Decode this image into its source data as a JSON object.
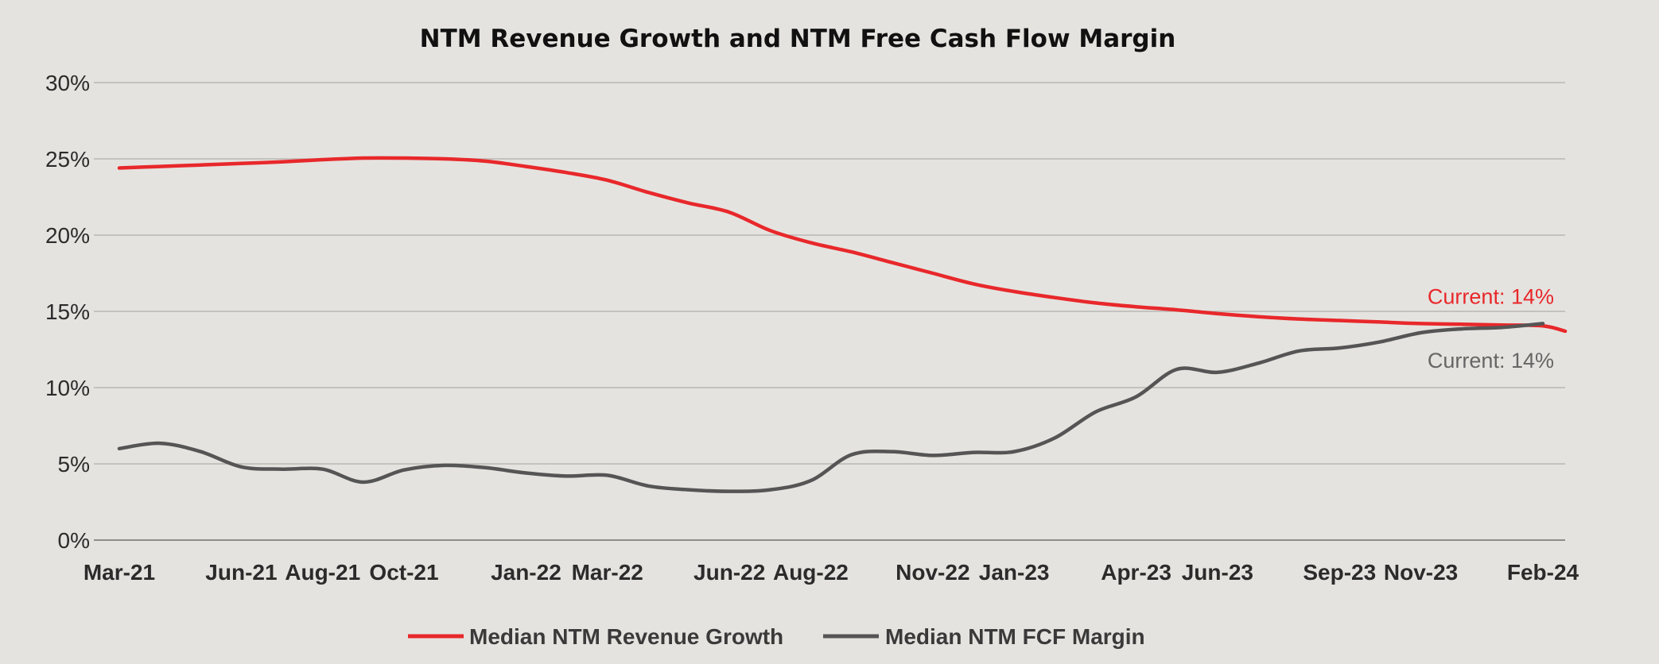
{
  "chart_data": {
    "type": "line",
    "title": "NTM Revenue Growth and NTM Free Cash Flow Margin",
    "xlabel": "",
    "ylabel": "",
    "x_ticks": [
      "Mar-21",
      "Jun-21",
      "Aug-21",
      "Oct-21",
      "Jan-22",
      "Mar-22",
      "Jun-22",
      "Aug-22",
      "Nov-22",
      "Jan-23",
      "Apr-23",
      "Jun-23",
      "Sep-23",
      "Nov-23",
      "Feb-24"
    ],
    "y_ticks": [
      "0%",
      "5%",
      "10%",
      "15%",
      "20%",
      "25%",
      "30%"
    ],
    "ylim": [
      0,
      30
    ],
    "y_unit": "%",
    "grid": "horizontal",
    "legend_position": "bottom",
    "series": [
      {
        "name": "Median NTM Revenue Growth",
        "color": "#e8282b",
        "points": [
          [
            "Mar-21",
            24.4
          ],
          [
            "Apr-21",
            24.5
          ],
          [
            "May-21",
            24.6
          ],
          [
            "Jun-21",
            24.7
          ],
          [
            "Jul-21",
            24.8
          ],
          [
            "Aug-21",
            24.95
          ],
          [
            "Sep-21",
            25.05
          ],
          [
            "Oct-21",
            25.05
          ],
          [
            "Nov-21",
            25.0
          ],
          [
            "Dec-21",
            24.85
          ],
          [
            "Jan-22",
            24.5
          ],
          [
            "Feb-22",
            24.1
          ],
          [
            "Mar-22",
            23.6
          ],
          [
            "Apr-22",
            22.8
          ],
          [
            "May-22",
            22.1
          ],
          [
            "Jun-22",
            21.5
          ],
          [
            "Jul-22",
            20.3
          ],
          [
            "Aug-22",
            19.5
          ],
          [
            "Sep-22",
            18.9
          ],
          [
            "Oct-22",
            18.2
          ],
          [
            "Nov-22",
            17.5
          ],
          [
            "Dec-22",
            16.8
          ],
          [
            "Jan-23",
            16.3
          ],
          [
            "Feb-23",
            15.9
          ],
          [
            "Mar-23",
            15.55
          ],
          [
            "Apr-23",
            15.3
          ],
          [
            "May-23",
            15.1
          ],
          [
            "Jun-23",
            14.85
          ],
          [
            "Jul-23",
            14.65
          ],
          [
            "Aug-23",
            14.5
          ],
          [
            "Sep-23",
            14.4
          ],
          [
            "Oct-23",
            14.3
          ],
          [
            "Nov-23",
            14.2
          ],
          [
            "Dec-23",
            14.15
          ],
          [
            "Jan-24",
            14.1
          ],
          [
            "Feb-24",
            14.05
          ],
          [
            "Feb-24 end",
            13.7
          ]
        ]
      },
      {
        "name": "Median NTM FCF Margin",
        "color": "#555555",
        "points": [
          [
            "Mar-21",
            6.0
          ],
          [
            "Apr-21",
            6.35
          ],
          [
            "May-21",
            5.8
          ],
          [
            "Jun-21",
            4.8
          ],
          [
            "Jul-21",
            4.65
          ],
          [
            "Aug-21",
            4.65
          ],
          [
            "Sep-21",
            3.8
          ],
          [
            "Oct-21",
            4.6
          ],
          [
            "Nov-21",
            4.9
          ],
          [
            "Dec-21",
            4.75
          ],
          [
            "Jan-22",
            4.4
          ],
          [
            "Feb-22",
            4.2
          ],
          [
            "Mar-22",
            4.25
          ],
          [
            "Apr-22",
            3.55
          ],
          [
            "May-22",
            3.3
          ],
          [
            "Jun-22",
            3.2
          ],
          [
            "Jul-22",
            3.3
          ],
          [
            "Aug-22",
            3.9
          ],
          [
            "Sep-22",
            5.6
          ],
          [
            "Oct-22",
            5.8
          ],
          [
            "Nov-22",
            5.55
          ],
          [
            "Dec-22",
            5.75
          ],
          [
            "Jan-23",
            5.8
          ],
          [
            "Feb-23",
            6.7
          ],
          [
            "Mar-23",
            8.4
          ],
          [
            "Apr-23",
            9.4
          ],
          [
            "May-23",
            11.2
          ],
          [
            "Jun-23",
            11.0
          ],
          [
            "Jul-23",
            11.6
          ],
          [
            "Aug-23",
            12.4
          ],
          [
            "Sep-23",
            12.6
          ],
          [
            "Oct-23",
            13.0
          ],
          [
            "Nov-23",
            13.6
          ],
          [
            "Dec-23",
            13.85
          ],
          [
            "Jan-24",
            13.95
          ],
          [
            "Feb-24",
            14.2
          ]
        ]
      }
    ],
    "annotations": [
      {
        "text": "Current: 14%",
        "series": "Median NTM Revenue Growth",
        "color": "#e8282b",
        "y": 15.7
      },
      {
        "text": "Current: 14%",
        "series": "Median NTM FCF Margin",
        "color": "#666666",
        "y": 11.5
      }
    ]
  }
}
